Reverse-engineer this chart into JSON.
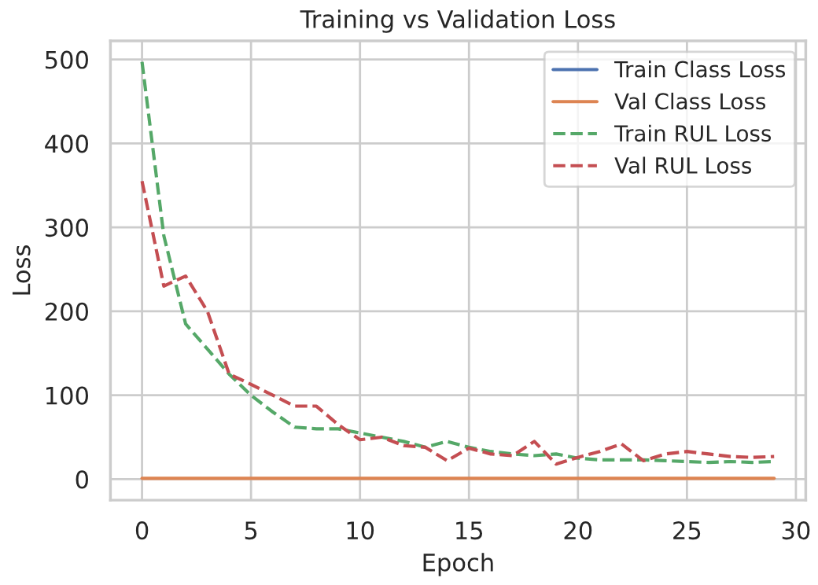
{
  "chart_data": {
    "type": "line",
    "title": "Training vs Validation Loss",
    "xlabel": "Epoch",
    "ylabel": "Loss",
    "x": [
      0,
      1,
      2,
      3,
      4,
      5,
      6,
      7,
      8,
      9,
      10,
      11,
      12,
      13,
      14,
      15,
      16,
      17,
      18,
      19,
      20,
      21,
      22,
      23,
      24,
      25,
      26,
      27,
      28,
      29
    ],
    "series": [
      {
        "name": "Train Class Loss",
        "color": "#4c72b0",
        "line_style": "solid",
        "values": [
          null,
          null,
          null,
          null,
          null,
          null,
          null,
          null,
          null,
          null,
          null,
          null,
          null,
          null,
          null,
          null,
          null,
          null,
          null,
          null,
          null,
          null,
          null,
          null,
          null,
          null,
          null,
          null,
          null,
          null
        ]
      },
      {
        "name": "Val Class Loss",
        "color": "#dd8452",
        "line_style": "solid",
        "values": [
          1,
          1,
          1,
          1,
          1,
          1,
          1,
          1,
          1,
          1,
          1,
          1,
          1,
          1,
          1,
          1,
          1,
          1,
          1,
          1,
          1,
          1,
          1,
          1,
          1,
          1,
          1,
          1,
          1,
          1
        ]
      },
      {
        "name": "Train RUL Loss",
        "color": "#55a868",
        "line_style": "dashed",
        "values": [
          497,
          290,
          185,
          155,
          125,
          100,
          80,
          62,
          60,
          60,
          55,
          50,
          45,
          38,
          45,
          38,
          33,
          30,
          28,
          30,
          25,
          23,
          23,
          23,
          22,
          21,
          20,
          21,
          20,
          21
        ]
      },
      {
        "name": "Val RUL Loss",
        "color": "#c44e52",
        "line_style": "dashed",
        "values": [
          355,
          230,
          242,
          200,
          125,
          113,
          100,
          87,
          87,
          65,
          47,
          50,
          40,
          38,
          22,
          37,
          30,
          28,
          45,
          18,
          26,
          33,
          42,
          22,
          30,
          33,
          30,
          27,
          26,
          27
        ]
      }
    ],
    "xlim": [
      -1.45,
      30.45
    ],
    "ylim": [
      -25,
      522
    ],
    "xticks": [
      0,
      5,
      10,
      15,
      20,
      25,
      30
    ],
    "yticks": [
      0,
      100,
      200,
      300,
      400,
      500
    ],
    "grid": true,
    "legend": "top right",
    "marker": "none"
  }
}
